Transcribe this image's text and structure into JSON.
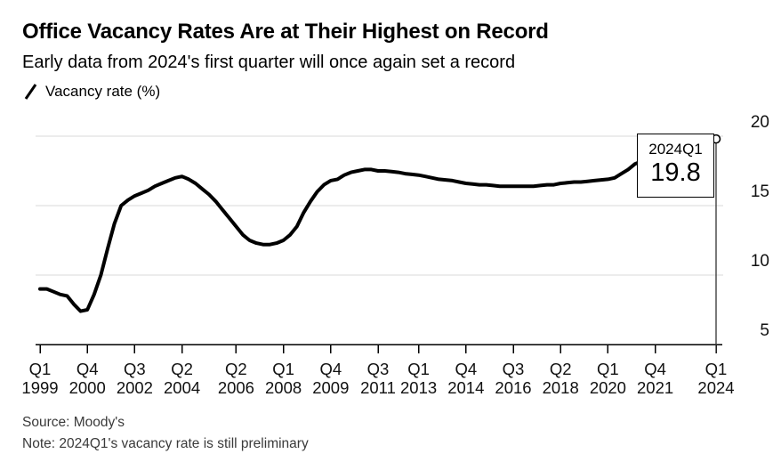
{
  "header": {
    "title": "Office Vacancy Rates Are at Their Highest on Record",
    "subtitle": "Early data from 2024's first quarter will once again set a record"
  },
  "legend": {
    "label": "Vacancy rate (%)",
    "icon": "line-slash"
  },
  "footer": {
    "source": "Source: Moody's",
    "note": "Note: 2024Q1's vacancy rate is still preliminary"
  },
  "colors": {
    "line": "#000000",
    "grid": "#d9d9d9",
    "axis": "#000000",
    "tick_text": "#111111",
    "muted_text": "#3a3a3a",
    "background": "#ffffff",
    "drop_line": "#333333"
  },
  "chart_data": {
    "type": "line",
    "title": "Office Vacancy Rates Are at Their Highest on Record",
    "subtitle": "Early data from 2024's first quarter will once again set a record",
    "xlabel": "",
    "ylabel": "Vacancy rate (%)",
    "legend_position": "top-left",
    "y_axis_side": "right",
    "grid": "horizontal",
    "ylim": [
      5,
      20
    ],
    "y_ticks": [
      5,
      10,
      15,
      20
    ],
    "x": [
      "1999Q1",
      "1999Q2",
      "1999Q3",
      "1999Q4",
      "2000Q1",
      "2000Q2",
      "2000Q3",
      "2000Q4",
      "2001Q1",
      "2001Q2",
      "2001Q3",
      "2001Q4",
      "2002Q1",
      "2002Q2",
      "2002Q3",
      "2002Q4",
      "2003Q1",
      "2003Q2",
      "2003Q3",
      "2003Q4",
      "2004Q1",
      "2004Q2",
      "2004Q3",
      "2004Q4",
      "2005Q1",
      "2005Q2",
      "2005Q3",
      "2005Q4",
      "2006Q1",
      "2006Q2",
      "2006Q3",
      "2006Q4",
      "2007Q1",
      "2007Q2",
      "2007Q3",
      "2007Q4",
      "2008Q1",
      "2008Q2",
      "2008Q3",
      "2008Q4",
      "2009Q1",
      "2009Q2",
      "2009Q3",
      "2009Q4",
      "2010Q1",
      "2010Q2",
      "2010Q3",
      "2010Q4",
      "2011Q1",
      "2011Q2",
      "2011Q3",
      "2011Q4",
      "2012Q1",
      "2012Q2",
      "2012Q3",
      "2012Q4",
      "2013Q1",
      "2013Q2",
      "2013Q3",
      "2013Q4",
      "2014Q1",
      "2014Q2",
      "2014Q3",
      "2014Q4",
      "2015Q1",
      "2015Q2",
      "2015Q3",
      "2015Q4",
      "2016Q1",
      "2016Q2",
      "2016Q3",
      "2016Q4",
      "2017Q1",
      "2017Q2",
      "2017Q3",
      "2017Q4",
      "2018Q1",
      "2018Q2",
      "2018Q3",
      "2018Q4",
      "2019Q1",
      "2019Q2",
      "2019Q3",
      "2019Q4",
      "2020Q1",
      "2020Q2",
      "2020Q3",
      "2020Q4",
      "2021Q1",
      "2021Q2",
      "2021Q3",
      "2021Q4",
      "2022Q1",
      "2022Q2",
      "2022Q3",
      "2022Q4",
      "2023Q1",
      "2023Q2",
      "2023Q3",
      "2023Q4",
      "2024Q1"
    ],
    "series": [
      {
        "name": "Vacancy rate (%)",
        "values": [
          9.0,
          9.0,
          8.8,
          8.6,
          8.5,
          7.9,
          7.4,
          7.5,
          8.6,
          10.0,
          11.9,
          13.7,
          15.0,
          15.4,
          15.7,
          15.9,
          16.1,
          16.4,
          16.6,
          16.8,
          17.0,
          17.1,
          16.9,
          16.6,
          16.2,
          15.8,
          15.3,
          14.7,
          14.1,
          13.5,
          12.9,
          12.5,
          12.3,
          12.2,
          12.2,
          12.3,
          12.5,
          12.9,
          13.5,
          14.5,
          15.3,
          16.0,
          16.5,
          16.8,
          16.9,
          17.2,
          17.4,
          17.5,
          17.6,
          17.6,
          17.5,
          17.5,
          17.45,
          17.4,
          17.3,
          17.25,
          17.2,
          17.1,
          17.0,
          16.9,
          16.85,
          16.8,
          16.7,
          16.6,
          16.55,
          16.5,
          16.5,
          16.45,
          16.4,
          16.4,
          16.4,
          16.4,
          16.4,
          16.4,
          16.45,
          16.5,
          16.5,
          16.6,
          16.65,
          16.7,
          16.7,
          16.75,
          16.8,
          16.85,
          16.9,
          17.0,
          17.3,
          17.6,
          18.0,
          18.2,
          18.4,
          18.5,
          18.6,
          18.7,
          18.8,
          18.9,
          19.0,
          19.2,
          19.4,
          19.6,
          19.8
        ]
      }
    ],
    "x_ticks": [
      {
        "quarter": "Q1",
        "year": "1999",
        "index": 0
      },
      {
        "quarter": "Q4",
        "year": "2000",
        "index": 7
      },
      {
        "quarter": "Q3",
        "year": "2002",
        "index": 14
      },
      {
        "quarter": "Q2",
        "year": "2004",
        "index": 21
      },
      {
        "quarter": "Q2",
        "year": "2006",
        "index": 29
      },
      {
        "quarter": "Q1",
        "year": "2008",
        "index": 36
      },
      {
        "quarter": "Q4",
        "year": "2009",
        "index": 43
      },
      {
        "quarter": "Q3",
        "year": "2011",
        "index": 50
      },
      {
        "quarter": "Q1",
        "year": "2013",
        "index": 56
      },
      {
        "quarter": "Q4",
        "year": "2014",
        "index": 63
      },
      {
        "quarter": "Q3",
        "year": "2016",
        "index": 70
      },
      {
        "quarter": "Q2",
        "year": "2018",
        "index": 77
      },
      {
        "quarter": "Q1",
        "year": "2020",
        "index": 84
      },
      {
        "quarter": "Q4",
        "year": "2021",
        "index": 91
      },
      {
        "quarter": "Q1",
        "year": "2024",
        "index": 100
      }
    ],
    "annotation": {
      "label": "2024Q1",
      "value": 19.8,
      "marker": "open-circle"
    }
  }
}
